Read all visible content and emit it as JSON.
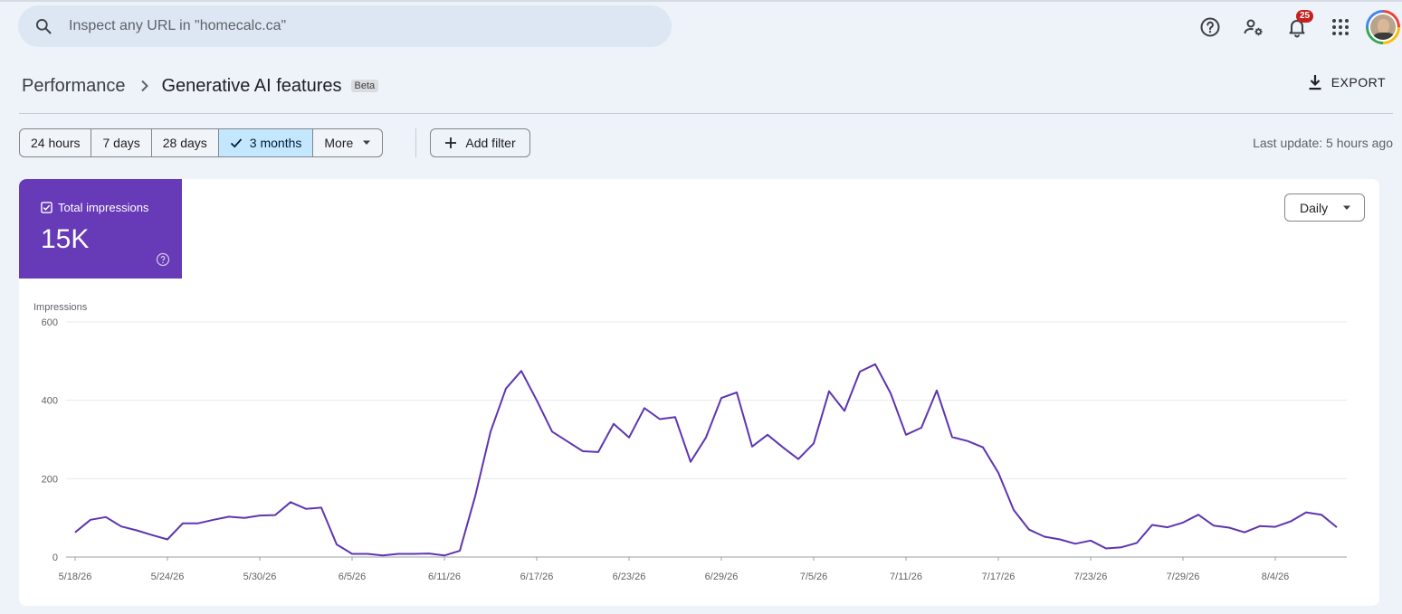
{
  "search": {
    "placeholder": "Inspect any URL in \"homecalc.ca\"",
    "icon": "search-icon"
  },
  "topbar": {
    "icons": [
      "help-icon",
      "manage-users-icon",
      "notifications-icon",
      "apps-grid-icon",
      "avatar"
    ],
    "notification_count": "25"
  },
  "breadcrumb": {
    "parent": "Performance",
    "current": "Generative AI features",
    "badge": "Beta"
  },
  "export_label": "EXPORT",
  "date_range": {
    "options": [
      "24 hours",
      "7 days",
      "28 days",
      "3 months",
      "More"
    ],
    "selected": "3 months"
  },
  "add_filter_label": "Add filter",
  "last_update": "Last update: 5 hours ago",
  "metric": {
    "label": "Total impressions",
    "value": "15K",
    "color": "#673ab7"
  },
  "granularity": "Daily",
  "chart_data": {
    "type": "line",
    "ylabel": "Impressions",
    "ylim": [
      0,
      600
    ],
    "yticks": [
      0,
      200,
      400,
      600
    ],
    "xtick_labels": [
      "5/18/26",
      "5/24/26",
      "5/30/26",
      "6/5/26",
      "6/11/26",
      "6/17/26",
      "6/23/26",
      "6/29/26",
      "7/5/26",
      "7/11/26",
      "7/17/26",
      "7/23/26",
      "7/29/26",
      "8/4/26"
    ],
    "x_start": "5/18/26",
    "x_end": "8/10/26",
    "grid": true,
    "series": [
      {
        "color": "#5e35b1",
        "values": [
          63,
          95,
          102,
          78,
          68,
          56,
          45,
          86,
          86,
          95,
          103,
          100,
          106,
          107,
          140,
          123,
          126,
          32,
          8,
          8,
          4,
          8,
          8,
          9,
          4,
          16,
          155,
          320,
          430,
          475,
          400,
          320,
          295,
          270,
          268,
          340,
          305,
          380,
          352,
          357,
          243,
          305,
          406,
          420,
          282,
          312,
          280,
          250,
          290,
          423,
          373,
          473,
          492,
          418,
          312,
          330,
          425,
          306,
          296,
          280,
          215,
          120,
          70,
          52,
          45,
          34,
          42,
          22,
          25,
          36,
          82,
          76,
          88,
          108,
          80,
          75,
          63,
          79,
          77,
          91,
          114,
          108,
          76
        ]
      }
    ]
  }
}
